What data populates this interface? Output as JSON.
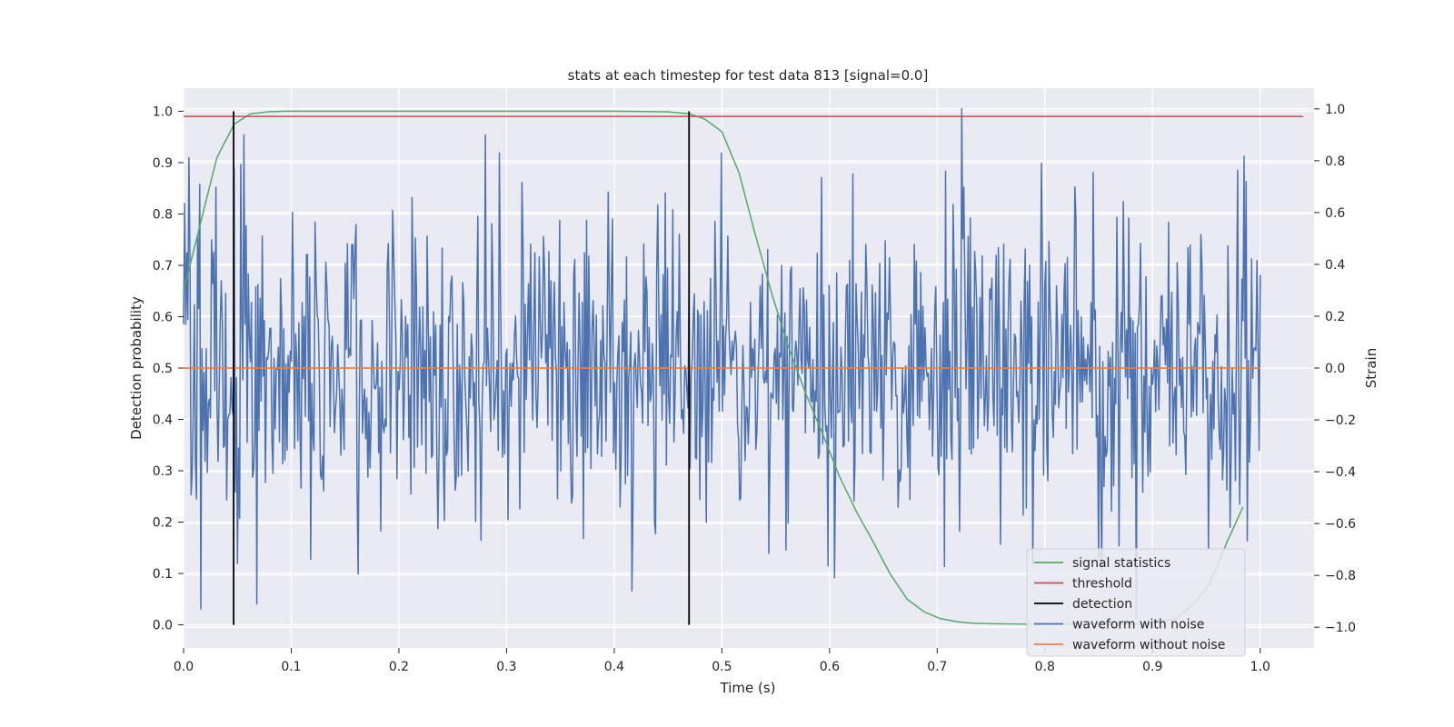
{
  "chart_data": {
    "type": "line",
    "title": "stats at each timestep for test data 813 [signal=0.0]",
    "xlabel": "Time (s)",
    "ylabel_left": "Detection probability",
    "ylabel_right": "Strain",
    "xlim": [
      0.0,
      1.05
    ],
    "ylim_left": [
      -0.045,
      1.045
    ],
    "ylim_right": [
      -1.08,
      1.08
    ],
    "x_ticks": [
      0.0,
      0.1,
      0.2,
      0.3,
      0.4,
      0.5,
      0.6,
      0.7,
      0.8,
      0.9,
      1.0
    ],
    "y_ticks_left": [
      0.0,
      0.1,
      0.2,
      0.3,
      0.4,
      0.5,
      0.6,
      0.7,
      0.8,
      0.9,
      1.0
    ],
    "y_ticks_right": [
      -1.0,
      -0.8,
      -0.6,
      -0.4,
      -0.2,
      0.0,
      0.2,
      0.4,
      0.6,
      0.8,
      1.0
    ],
    "grid": true,
    "legend_position": "lower right",
    "colors": {
      "plot_bg": "#EAEAF2",
      "grid": "#FFFFFF",
      "signal_statistics": "#55A868",
      "threshold": "#C44E52",
      "detection": "#000000",
      "waveform_with_noise": "#4C72B0",
      "waveform_without_noise": "#DD8452"
    },
    "signal_statistics": {
      "name": "signal statistics",
      "x": [
        0.0,
        0.031,
        0.047,
        0.062,
        0.078,
        0.094,
        0.109,
        0.2,
        0.3,
        0.4,
        0.45,
        0.47,
        0.484,
        0.5,
        0.516,
        0.531,
        0.547,
        0.562,
        0.578,
        0.594,
        0.609,
        0.625,
        0.641,
        0.656,
        0.672,
        0.688,
        0.703,
        0.719,
        0.734,
        0.75,
        0.8,
        0.85,
        0.9,
        0.922,
        0.938,
        0.953,
        0.969,
        0.984
      ],
      "y": [
        0.65,
        0.91,
        0.975,
        0.995,
        0.999,
        1.0,
        1.0,
        1.0,
        1.0,
        1.0,
        0.999,
        0.995,
        0.985,
        0.96,
        0.88,
        0.76,
        0.64,
        0.54,
        0.45,
        0.37,
        0.29,
        0.22,
        0.16,
        0.1,
        0.05,
        0.025,
        0.012,
        0.006,
        0.003,
        0.002,
        0.001,
        0.001,
        0.002,
        0.012,
        0.04,
        0.08,
        0.16,
        0.23
      ]
    },
    "threshold": {
      "name": "threshold",
      "value": 0.99,
      "x_range": [
        0.0,
        1.04
      ]
    },
    "detection": {
      "name": "detection",
      "x": [
        0.0465,
        0.4695
      ],
      "y_range": [
        0.0,
        1.0
      ]
    },
    "waveform_with_noise": {
      "name": "waveform with noise",
      "axis": "right",
      "x_range": [
        0.0,
        1.0
      ],
      "num_samples": 1000,
      "noise_std": 0.3,
      "notable_points": [
        {
          "x": 0.016,
          "y": -0.93
        },
        {
          "x": 0.047,
          "y": 0.77
        },
        {
          "x": 0.068,
          "y": -0.91
        },
        {
          "x": 0.293,
          "y": 0.83
        },
        {
          "x": 0.416,
          "y": -0.86
        },
        {
          "x": 0.5,
          "y": 0.83
        },
        {
          "x": 0.723,
          "y": 1.0
        },
        {
          "x": 0.885,
          "y": -0.96
        },
        {
          "x": 0.987,
          "y": 0.72
        }
      ]
    },
    "waveform_without_noise": {
      "name": "waveform without noise",
      "axis": "right",
      "x_range": [
        0.0,
        1.0
      ],
      "y": 0.0
    }
  }
}
